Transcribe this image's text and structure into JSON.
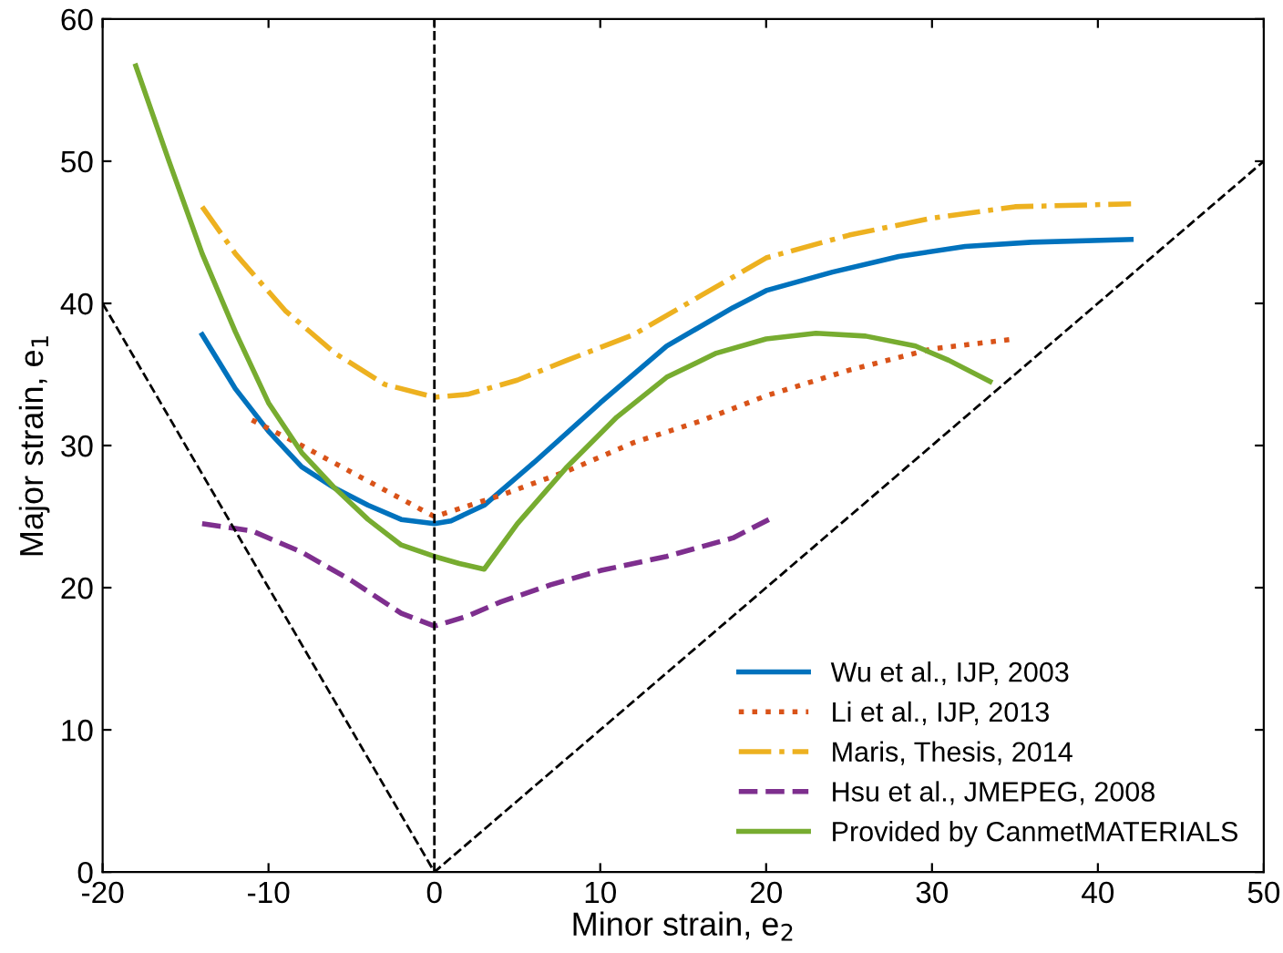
{
  "chart_data": {
    "type": "line",
    "xlabel": "Minor strain, e$_{2}$",
    "ylabel": "Major strain, e$_{1}$",
    "xlim": [
      -20,
      50
    ],
    "ylim": [
      0,
      60
    ],
    "xticks": [
      -20,
      -10,
      0,
      10,
      20,
      30,
      40,
      50
    ],
    "yticks": [
      0,
      10,
      20,
      30,
      40,
      50,
      60
    ],
    "grid": false,
    "legend": "bottom right",
    "marker": "none",
    "ref_lines": [
      {
        "axis": "x",
        "value": 0,
        "label": null,
        "color": "#000000",
        "line_style": "dashed"
      }
    ],
    "series": [
      {
        "name": "Wu et al., IJP, 2003",
        "color": "#0072bd",
        "line_style": "solid",
        "x": [
          -14,
          -12,
          -10,
          -8,
          -6,
          -4,
          -2,
          0,
          1,
          3,
          6,
          10,
          14,
          18,
          20,
          24,
          28,
          32,
          36,
          42
        ],
        "values": [
          37.8,
          34,
          31,
          28.5,
          27,
          25.8,
          24.8,
          24.5,
          24.7,
          25.8,
          28.8,
          33,
          37,
          39.7,
          40.9,
          42.2,
          43.3,
          44,
          44.3,
          44.5
        ]
      },
      {
        "name": "Li et al., IJP, 2013",
        "color": "#d95319",
        "line_style": "dotted",
        "x": [
          -11,
          -8,
          -4,
          0,
          4,
          8,
          12,
          16,
          20,
          25,
          30,
          35
        ],
        "values": [
          31.8,
          30,
          27.5,
          25,
          26.5,
          28.2,
          30.2,
          31.7,
          33.5,
          35.3,
          36.8,
          37.5
        ]
      },
      {
        "name": "Maris, Thesis, 2014",
        "color": "#edb120",
        "line_style": "dashdot",
        "x": [
          -14,
          -12,
          -9,
          -6,
          -3,
          0,
          2,
          5,
          8,
          12,
          16,
          20,
          25,
          30,
          35,
          42
        ],
        "values": [
          46.8,
          43.5,
          39.5,
          36.5,
          34.3,
          33.4,
          33.6,
          34.6,
          36,
          37.8,
          40.5,
          43.2,
          44.8,
          46,
          46.8,
          47
        ]
      },
      {
        "name": "Hsu et al., JMEPEG, 2008",
        "color": "#7e2f8e",
        "line_style": "dashed",
        "x": [
          -14,
          -11,
          -8,
          -5,
          -2,
          0,
          2,
          4,
          7,
          10,
          14,
          18,
          20.5
        ],
        "values": [
          24.5,
          24,
          22.5,
          20.5,
          18.2,
          17.3,
          18,
          19,
          20.2,
          21.2,
          22.2,
          23.5,
          25
        ]
      },
      {
        "name": "Provided by CanmetMATERIALS",
        "color": "#77ac30",
        "line_style": "solid",
        "x": [
          -18,
          -16,
          -14,
          -12,
          -10,
          -8,
          -6,
          -4,
          -2,
          0,
          1.5,
          3,
          5,
          8,
          11,
          14,
          17,
          20,
          23,
          26,
          29,
          31,
          33.5
        ],
        "values": [
          56.7,
          50,
          43.5,
          38,
          33,
          29.5,
          27,
          24.8,
          23,
          22.2,
          21.7,
          21.3,
          24.5,
          28.5,
          32,
          34.8,
          36.5,
          37.5,
          37.9,
          37.7,
          37,
          36,
          34.5
        ]
      },
      {
        "color": "#000000",
        "line_style": "dashed",
        "x": [
          -20,
          0,
          50
        ],
        "values": [
          40,
          0,
          50
        ]
      }
    ]
  }
}
